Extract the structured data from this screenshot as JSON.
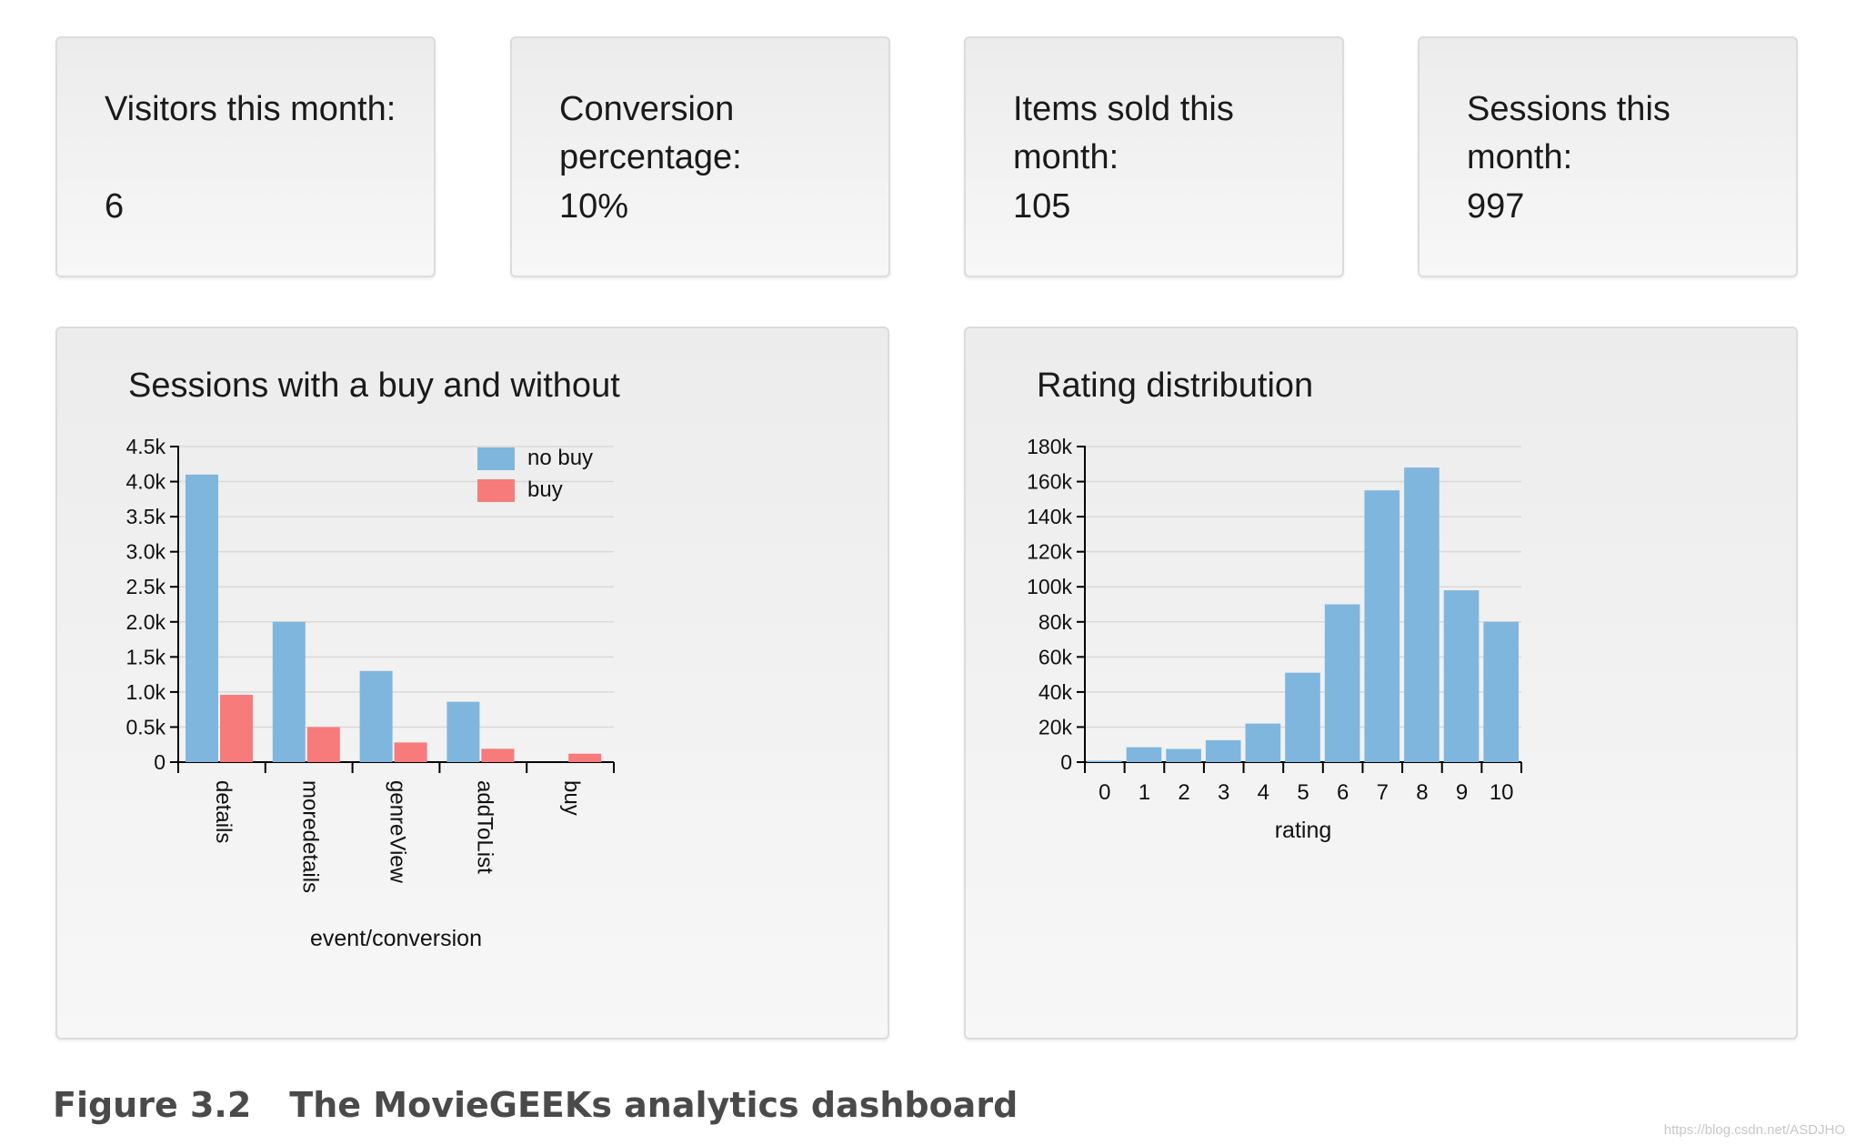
{
  "stats": [
    {
      "label": "Visitors this month:",
      "value": "6"
    },
    {
      "label": "Conversion percentage:",
      "value": "10%"
    },
    {
      "label": "Items sold this month:",
      "value": "105"
    },
    {
      "label": "Sessions this month:",
      "value": "997"
    }
  ],
  "caption": {
    "figure": "Figure 3.2",
    "text": "The MovieGEEKs analytics dashboard"
  },
  "watermark": "https://blog.csdn.net/ASDJHO",
  "colors": {
    "no_buy": "#7fb6de",
    "buy": "#f77b7b",
    "grid": "#d9d9d9",
    "axis": "#000000"
  },
  "chart_data": [
    {
      "type": "bar",
      "title": "Sessions with a buy and without",
      "xlabel": "event/conversion",
      "ylabel": "",
      "categories": [
        "details",
        "moredetails",
        "genreView",
        "addToList",
        "buy"
      ],
      "series": [
        {
          "name": "no buy",
          "values": [
            4100,
            2000,
            1300,
            860,
            0
          ]
        },
        {
          "name": "buy",
          "values": [
            960,
            500,
            280,
            190,
            120
          ]
        }
      ],
      "ylim": [
        0,
        4500
      ],
      "yticks": [
        "0",
        "0.5k",
        "1.0k",
        "1.5k",
        "2.0k",
        "2.5k",
        "3.0k",
        "3.5k",
        "4.0k",
        "4.5k"
      ],
      "grid": true,
      "legend": "top-right"
    },
    {
      "type": "bar",
      "title": "Rating distribution",
      "xlabel": "rating",
      "ylabel": "",
      "categories": [
        "0",
        "1",
        "2",
        "3",
        "4",
        "5",
        "6",
        "7",
        "8",
        "9",
        "10"
      ],
      "values": [
        800,
        8500,
        7500,
        12500,
        22000,
        51000,
        90000,
        155000,
        168000,
        98000,
        80000
      ],
      "ylim": [
        0,
        180000
      ],
      "yticks": [
        "0",
        "20k",
        "40k",
        "60k",
        "80k",
        "100k",
        "120k",
        "140k",
        "160k",
        "180k"
      ],
      "grid": true,
      "legend": "none"
    }
  ]
}
